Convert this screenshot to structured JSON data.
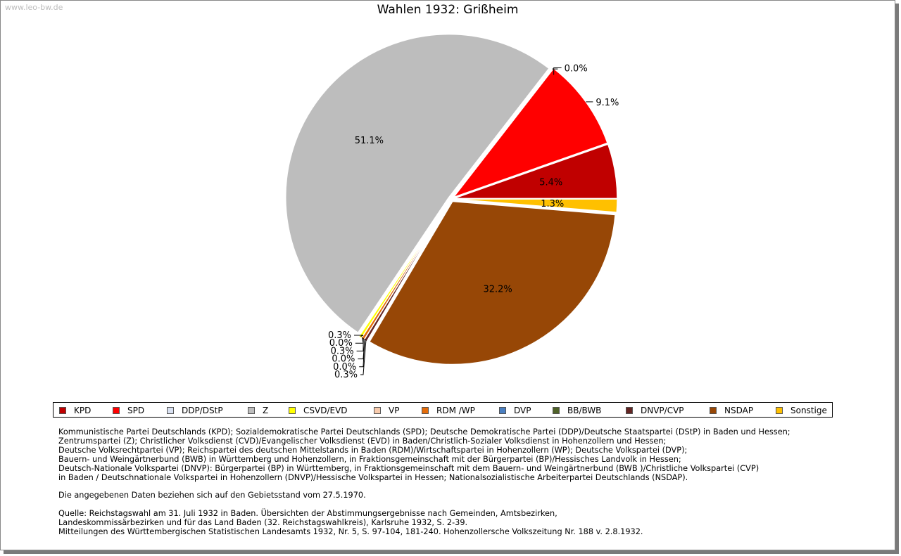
{
  "watermark": "www.leo-bw.de",
  "chart_data": {
    "type": "pie",
    "title": "Wahlen 1932: Grißheim",
    "slices": [
      {
        "name": "KPD",
        "value": 5.4,
        "label": "5.4%",
        "color": "#c00000"
      },
      {
        "name": "SPD",
        "value": 9.1,
        "label": "9.1%",
        "color": "#ff0000"
      },
      {
        "name": "DDP/DStP",
        "value": 0.0,
        "label": "0.0%",
        "color": "#d9e1f2"
      },
      {
        "name": "Z",
        "value": 51.1,
        "label": "51.1%",
        "color": "#bdbdbd"
      },
      {
        "name": "CSVD/EVD",
        "value": 0.3,
        "label": "0.3%",
        "color": "#ffff00"
      },
      {
        "name": "VP",
        "value": 0.0,
        "label": "0.0%",
        "color": "#f8cbad"
      },
      {
        "name": "RDM /WP",
        "value": 0.3,
        "label": "0.3%",
        "color": "#e46c0a"
      },
      {
        "name": "DVP",
        "value": 0.0,
        "label": "0.0%",
        "color": "#4a7fc1"
      },
      {
        "name": "BB/BWB",
        "value": 0.0,
        "label": "0.0%",
        "color": "#4f6228"
      },
      {
        "name": "DNVP/CVP",
        "value": 0.3,
        "label": "0.3%",
        "color": "#632523"
      },
      {
        "name": "NSDAP",
        "value": 32.2,
        "label": "32.2%",
        "color": "#974706"
      },
      {
        "name": "Sonstige",
        "value": 1.3,
        "label": "1.3%",
        "color": "#ffc000"
      }
    ],
    "legend": [
      "KPD",
      "SPD",
      "DDP/DStP",
      "Z",
      "CSVD/EVD",
      "VP",
      "RDM /WP",
      "DVP",
      "BB/BWB",
      "DNVP/CVP",
      "NSDAP",
      "Sonstige"
    ],
    "legend_position": "bottom"
  },
  "notes": {
    "parties": [
      "Kommunistische Partei Deutschlands (KPD); Sozialdemokratische Partei Deutschlands (SPD); Deutsche Demokratische Partei (DDP)/Deutsche Staatspartei (DStP) in Baden und Hessen;",
      "Zentrumspartei (Z); Christlicher Volksdienst (CVD)/Evangelischer Volksdienst (EVD) in Baden/Christlich-Sozialer Volksdienst in Hohenzollern und Hessen;",
      "Deutsche Volksrechtpartei (VP); Reichspartei des deutschen Mittelstands in Baden (RDM)/Wirtschaftspartei in Hohenzollern (WP); Deutsche Volkspartei (DVP);",
      "Bauern- und Weingärtnerbund (BWB) in Württemberg und Hohenzollern, in Fraktionsgemeinschaft mit der Bürgerpartei (BP)/Hessisches Landvolk in Hessen;",
      "Deutsch-Nationale Volkspartei (DNVP): Bürgerpartei (BP) in Württemberg, in Fraktionsgemeinschaft mit dem Bauern- und Weingärtnerbund (BWB )/Christliche Volkspartei (CVP)",
      "in Baden / Deutschnationale Volkspartei in Hohenzollern (DNVP)/Hessische Volkspartei in Hessen; Nationalsozialistische Arbeiterpartei Deutschlands (NSDAP)."
    ],
    "territory": "Die angegebenen Daten beziehen sich auf den Gebietsstand vom 27.5.1970.",
    "source": [
      "Quelle: Reichstagswahl am 31. Juli 1932 in Baden. Übersichten der Abstimmungsergebnisse nach Gemeinden, Amtsbezirken,",
      "Landeskommissärbezirken und für das Land Baden (32. Reichstagswahlkreis), Karlsruhe 1932, S. 2-39.",
      "Mitteilungen des Württembergischen Statistischen Landesamts 1932, Nr. 5, S. 97-104, 181-240. Hohenzollersche Volkszeitung Nr. 188 v. 2.8.1932."
    ]
  }
}
